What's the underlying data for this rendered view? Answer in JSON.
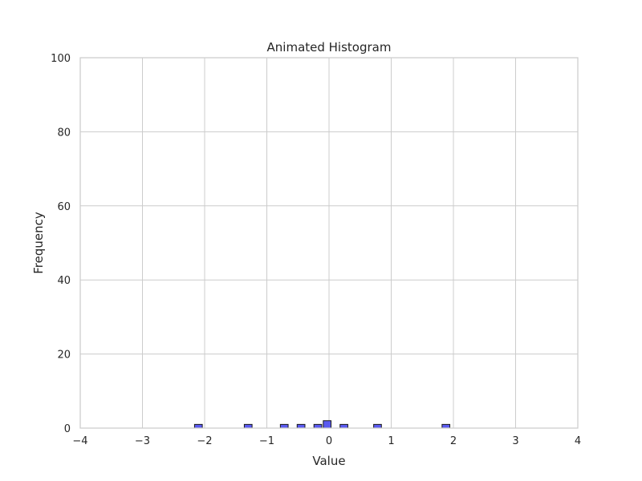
{
  "chart_data": {
    "type": "bar",
    "title": "Animated Histogram",
    "xlabel": "Value",
    "ylabel": "Frequency",
    "xlim": [
      -4,
      4
    ],
    "ylim": [
      0,
      100
    ],
    "xticks": [
      -4,
      -3,
      -2,
      -1,
      0,
      1,
      2,
      3,
      4
    ],
    "xtick_labels": [
      "−4",
      "−3",
      "−2",
      "−1",
      "0",
      "1",
      "2",
      "3",
      "4"
    ],
    "yticks": [
      0,
      20,
      40,
      60,
      80,
      100
    ],
    "ytick_labels": [
      "0",
      "20",
      "40",
      "60",
      "80",
      "100"
    ],
    "grid": true,
    "bin_width": 0.125,
    "bins": [
      {
        "x": -2.1,
        "value": 1
      },
      {
        "x": -1.3,
        "value": 1
      },
      {
        "x": -0.72,
        "value": 1
      },
      {
        "x": -0.45,
        "value": 1
      },
      {
        "x": -0.18,
        "value": 1
      },
      {
        "x": -0.03,
        "value": 2
      },
      {
        "x": 0.24,
        "value": 1
      },
      {
        "x": 0.78,
        "value": 1
      },
      {
        "x": 1.88,
        "value": 1
      }
    ],
    "bar_color": "#5B5BF0",
    "bar_edge_color": "#1A1A1A",
    "grid_color": "#CCCCCC",
    "spine_color": "#CCCCCC"
  }
}
